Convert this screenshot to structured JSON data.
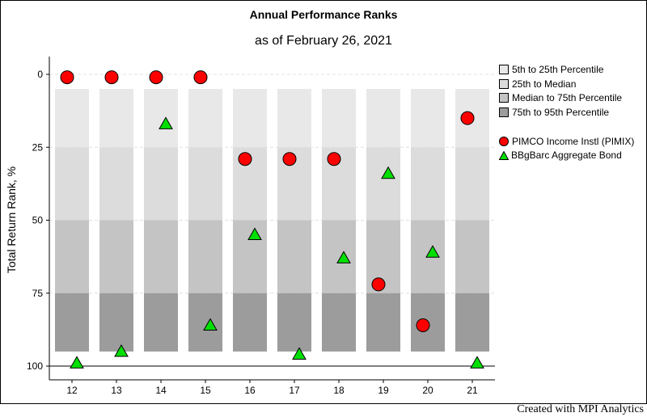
{
  "credit": "Created with MPI Analytics",
  "chart_data": {
    "type": "scatter",
    "title": "Annual Performance Ranks",
    "subtitle": "as of February 26, 2021",
    "ylabel": "Total Return Rank, %",
    "xlabel": "",
    "ylim": [
      0,
      100
    ],
    "y_inverted": true,
    "y_ticks": [
      0,
      25,
      50,
      75,
      100
    ],
    "categories": [
      "12",
      "13",
      "14",
      "15",
      "16",
      "17",
      "18",
      "19",
      "20",
      "21"
    ],
    "bands": [
      {
        "name": "5th to 25th Percentile",
        "from": 5,
        "to": 25,
        "color": "#e8e8e8"
      },
      {
        "name": "25th to Median",
        "from": 25,
        "to": 50,
        "color": "#dcdcdc"
      },
      {
        "name": "Median to 75th Percentile",
        "from": 50,
        "to": 75,
        "color": "#c4c4c4"
      },
      {
        "name": "75th to 95th Percentile",
        "from": 75,
        "to": 95,
        "color": "#9c9c9c"
      }
    ],
    "series": [
      {
        "name": "PIMCO Income Instl (PIMIX)",
        "marker": "circle",
        "color": "#ff0000",
        "values": [
          1,
          1,
          1,
          1,
          29,
          29,
          29,
          72,
          86,
          15
        ]
      },
      {
        "name": "BBgBarc Aggregate Bond",
        "marker": "triangle",
        "color": "#00e000",
        "values": [
          99,
          95,
          17,
          86,
          55,
          96,
          63,
          34,
          61,
          99
        ]
      }
    ],
    "legend_position": "right",
    "grid": "dashed-horizontal"
  }
}
